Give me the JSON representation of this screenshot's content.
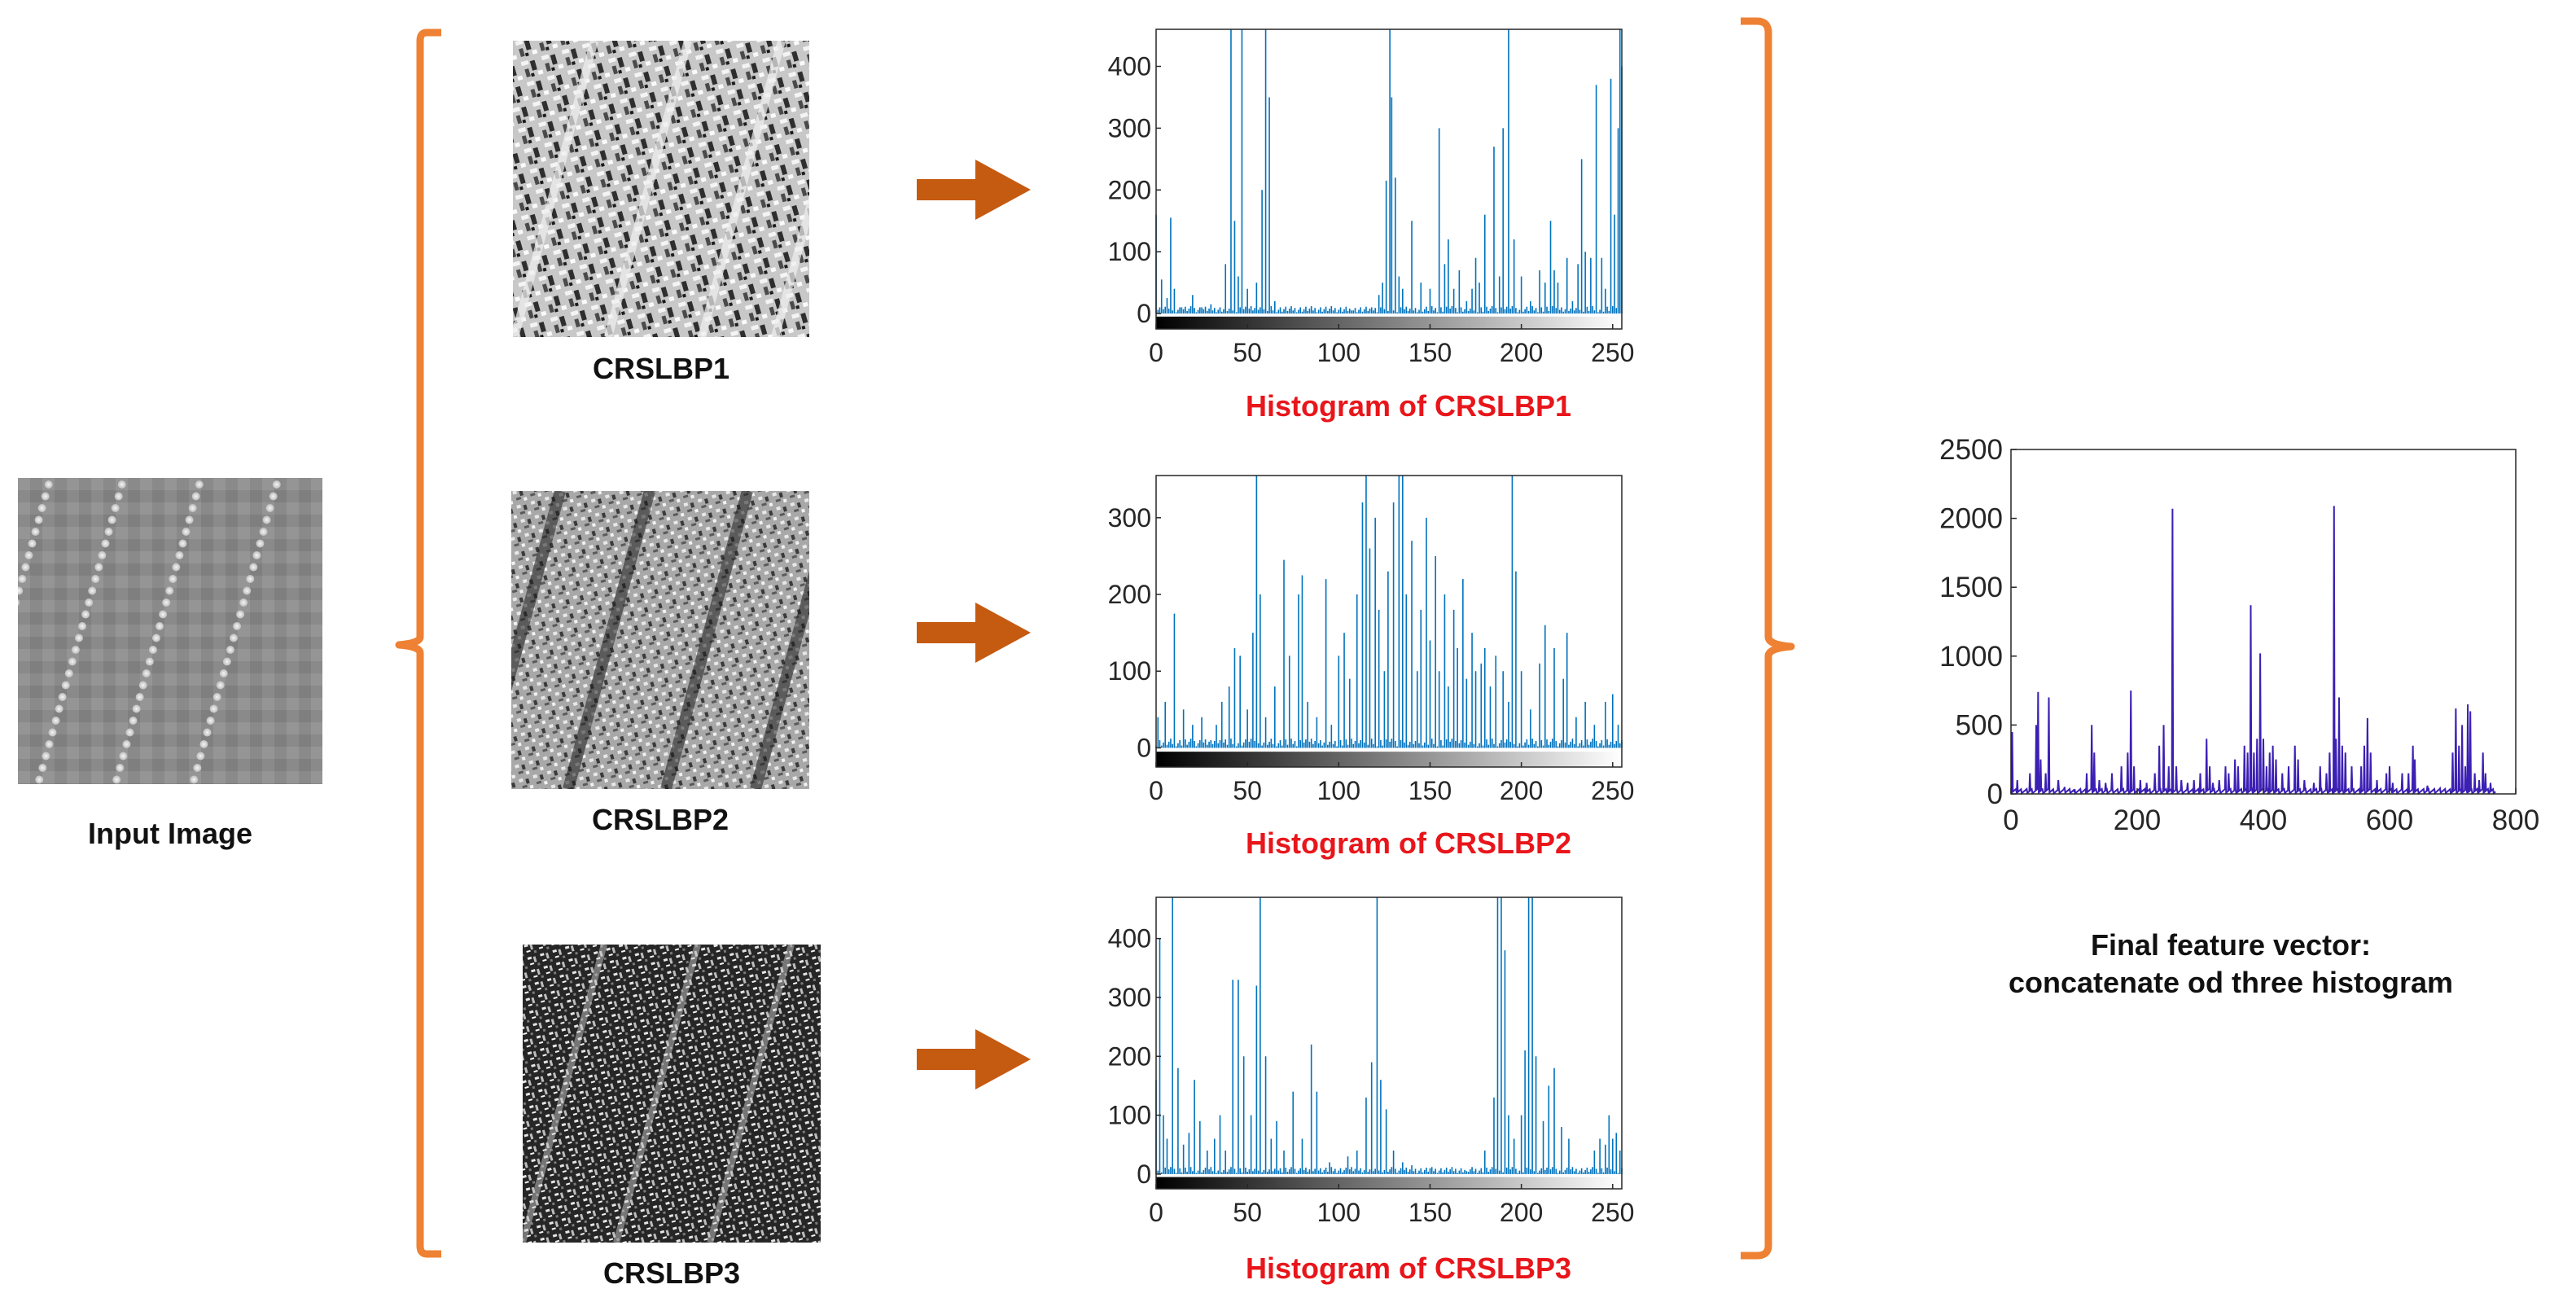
{
  "input": {
    "label": "Input Image"
  },
  "crslbp": [
    {
      "label": "CRSLBP1",
      "hist_title": "Histogram of CRSLBP1"
    },
    {
      "label": "CRSLBP2",
      "hist_title": "Histogram of CRSLBP2"
    },
    {
      "label": "CRSLBP3",
      "hist_title": "Histogram of CRSLBP3"
    }
  ],
  "final": {
    "caption_line1": "Final feature vector:",
    "caption_line2": "concatenate od three histogram"
  },
  "colors": {
    "bracket": "#ee8133",
    "arrow": "#c55a11",
    "hist": "#0072bd",
    "final_line": "#3c1fb3",
    "title_red": "#e8161b"
  },
  "chart_data": [
    {
      "type": "bar",
      "title": "Histogram of CRSLBP1",
      "xlim": [
        0,
        255
      ],
      "ylim": [
        -25,
        460
      ],
      "xticks": [
        0,
        50,
        100,
        150,
        200,
        250
      ],
      "yticks": [
        0,
        100,
        200,
        300,
        400
      ],
      "colorbar": "grayscale 0-255",
      "peaks": [
        [
          0,
          160
        ],
        [
          3,
          55
        ],
        [
          6,
          25
        ],
        [
          8,
          155
        ],
        [
          10,
          40
        ],
        [
          14,
          10
        ],
        [
          20,
          30
        ],
        [
          25,
          10
        ],
        [
          30,
          15
        ],
        [
          38,
          80
        ],
        [
          41,
          460
        ],
        [
          43,
          150
        ],
        [
          45,
          60
        ],
        [
          47,
          460
        ],
        [
          50,
          40
        ],
        [
          55,
          50
        ],
        [
          58,
          200
        ],
        [
          60,
          460
        ],
        [
          62,
          350
        ],
        [
          65,
          20
        ],
        [
          75,
          5
        ],
        [
          95,
          8
        ],
        [
          107,
          5
        ],
        [
          118,
          10
        ],
        [
          122,
          30
        ],
        [
          124,
          50
        ],
        [
          126,
          215
        ],
        [
          128,
          460
        ],
        [
          129,
          350
        ],
        [
          131,
          220
        ],
        [
          133,
          60
        ],
        [
          135,
          40
        ],
        [
          140,
          150
        ],
        [
          145,
          50
        ],
        [
          150,
          40
        ],
        [
          155,
          300
        ],
        [
          158,
          80
        ],
        [
          160,
          120
        ],
        [
          163,
          40
        ],
        [
          166,
          70
        ],
        [
          170,
          20
        ],
        [
          173,
          40
        ],
        [
          175,
          90
        ],
        [
          177,
          50
        ],
        [
          180,
          160
        ],
        [
          185,
          270
        ],
        [
          188,
          60
        ],
        [
          190,
          300
        ],
        [
          193,
          460
        ],
        [
          196,
          120
        ],
        [
          200,
          60
        ],
        [
          205,
          20
        ],
        [
          210,
          70
        ],
        [
          213,
          50
        ],
        [
          216,
          150
        ],
        [
          218,
          70
        ],
        [
          220,
          50
        ],
        [
          225,
          90
        ],
        [
          228,
          20
        ],
        [
          231,
          80
        ],
        [
          233,
          250
        ],
        [
          235,
          100
        ],
        [
          238,
          90
        ],
        [
          241,
          370
        ],
        [
          244,
          90
        ],
        [
          246,
          40
        ],
        [
          249,
          380
        ],
        [
          251,
          160
        ],
        [
          253,
          300
        ],
        [
          254,
          460
        ],
        [
          255,
          400
        ]
      ]
    },
    {
      "type": "bar",
      "title": "Histogram of CRSLBP2",
      "xlim": [
        0,
        255
      ],
      "ylim": [
        -25,
        355
      ],
      "xticks": [
        0,
        50,
        100,
        150,
        200,
        250
      ],
      "yticks": [
        0,
        100,
        200,
        300
      ],
      "colorbar": "grayscale 0-255",
      "peaks": [
        [
          1,
          40
        ],
        [
          5,
          60
        ],
        [
          10,
          175
        ],
        [
          15,
          50
        ],
        [
          20,
          30
        ],
        [
          25,
          40
        ],
        [
          30,
          10
        ],
        [
          33,
          30
        ],
        [
          36,
          60
        ],
        [
          40,
          80
        ],
        [
          43,
          130
        ],
        [
          46,
          120
        ],
        [
          50,
          50
        ],
        [
          53,
          150
        ],
        [
          55,
          355
        ],
        [
          57,
          200
        ],
        [
          60,
          40
        ],
        [
          65,
          80
        ],
        [
          70,
          245
        ],
        [
          73,
          120
        ],
        [
          78,
          200
        ],
        [
          80,
          225
        ],
        [
          83,
          60
        ],
        [
          88,
          40
        ],
        [
          93,
          220
        ],
        [
          96,
          30
        ],
        [
          100,
          120
        ],
        [
          103,
          150
        ],
        [
          106,
          90
        ],
        [
          110,
          200
        ],
        [
          113,
          320
        ],
        [
          115,
          355
        ],
        [
          117,
          260
        ],
        [
          120,
          300
        ],
        [
          122,
          180
        ],
        [
          125,
          100
        ],
        [
          127,
          230
        ],
        [
          130,
          320
        ],
        [
          133,
          355
        ],
        [
          135,
          355
        ],
        [
          137,
          200
        ],
        [
          140,
          270
        ],
        [
          143,
          100
        ],
        [
          145,
          180
        ],
        [
          148,
          300
        ],
        [
          150,
          140
        ],
        [
          153,
          250
        ],
        [
          155,
          100
        ],
        [
          158,
          200
        ],
        [
          160,
          80
        ],
        [
          163,
          180
        ],
        [
          165,
          130
        ],
        [
          168,
          220
        ],
        [
          170,
          90
        ],
        [
          173,
          150
        ],
        [
          175,
          100
        ],
        [
          178,
          110
        ],
        [
          180,
          130
        ],
        [
          183,
          80
        ],
        [
          186,
          120
        ],
        [
          190,
          100
        ],
        [
          193,
          60
        ],
        [
          195,
          355
        ],
        [
          197,
          230
        ],
        [
          200,
          100
        ],
        [
          205,
          50
        ],
        [
          210,
          110
        ],
        [
          213,
          160
        ],
        [
          218,
          130
        ],
        [
          223,
          90
        ],
        [
          225,
          150
        ],
        [
          230,
          40
        ],
        [
          235,
          60
        ],
        [
          240,
          30
        ],
        [
          246,
          60
        ],
        [
          250,
          70
        ],
        [
          253,
          30
        ]
      ]
    },
    {
      "type": "bar",
      "title": "Histogram of CRSLBP3",
      "xlim": [
        0,
        255
      ],
      "ylim": [
        -25,
        470
      ],
      "xticks": [
        0,
        50,
        100,
        150,
        200,
        250
      ],
      "yticks": [
        0,
        100,
        200,
        300,
        400
      ],
      "colorbar": "grayscale 0-255",
      "peaks": [
        [
          0,
          160
        ],
        [
          2,
          400
        ],
        [
          4,
          100
        ],
        [
          6,
          60
        ],
        [
          9,
          470
        ],
        [
          12,
          180
        ],
        [
          15,
          50
        ],
        [
          18,
          70
        ],
        [
          21,
          160
        ],
        [
          24,
          90
        ],
        [
          28,
          40
        ],
        [
          32,
          60
        ],
        [
          35,
          100
        ],
        [
          38,
          40
        ],
        [
          42,
          330
        ],
        [
          45,
          330
        ],
        [
          48,
          200
        ],
        [
          52,
          100
        ],
        [
          55,
          320
        ],
        [
          57,
          470
        ],
        [
          60,
          200
        ],
        [
          63,
          60
        ],
        [
          66,
          90
        ],
        [
          70,
          40
        ],
        [
          75,
          140
        ],
        [
          80,
          60
        ],
        [
          85,
          220
        ],
        [
          88,
          140
        ],
        [
          95,
          20
        ],
        [
          105,
          30
        ],
        [
          110,
          40
        ],
        [
          115,
          130
        ],
        [
          118,
          190
        ],
        [
          121,
          470
        ],
        [
          123,
          160
        ],
        [
          126,
          110
        ],
        [
          130,
          40
        ],
        [
          135,
          20
        ],
        [
          140,
          15
        ],
        [
          150,
          10
        ],
        [
          170,
          5
        ],
        [
          180,
          40
        ],
        [
          185,
          130
        ],
        [
          187,
          470
        ],
        [
          189,
          470
        ],
        [
          191,
          380
        ],
        [
          193,
          100
        ],
        [
          196,
          60
        ],
        [
          200,
          100
        ],
        [
          202,
          210
        ],
        [
          204,
          470
        ],
        [
          206,
          470
        ],
        [
          208,
          200
        ],
        [
          212,
          90
        ],
        [
          215,
          150
        ],
        [
          218,
          180
        ],
        [
          222,
          80
        ],
        [
          226,
          60
        ],
        [
          240,
          40
        ],
        [
          243,
          60
        ],
        [
          246,
          50
        ],
        [
          248,
          100
        ],
        [
          250,
          60
        ],
        [
          252,
          70
        ],
        [
          254,
          40
        ]
      ]
    },
    {
      "type": "line",
      "title": "",
      "xlim": [
        0,
        800
      ],
      "ylim": [
        0,
        2500
      ],
      "xticks": [
        0,
        200,
        400,
        600,
        800
      ],
      "yticks": [
        0,
        500,
        1000,
        1500,
        2000,
        2500
      ],
      "peaks": [
        [
          2,
          450
        ],
        [
          10,
          100
        ],
        [
          30,
          150
        ],
        [
          40,
          500
        ],
        [
          43,
          740
        ],
        [
          47,
          250
        ],
        [
          55,
          150
        ],
        [
          60,
          700
        ],
        [
          75,
          100
        ],
        [
          85,
          50
        ],
        [
          100,
          20
        ],
        [
          120,
          150
        ],
        [
          128,
          500
        ],
        [
          132,
          300
        ],
        [
          140,
          100
        ],
        [
          150,
          80
        ],
        [
          160,
          150
        ],
        [
          175,
          200
        ],
        [
          185,
          300
        ],
        [
          190,
          750
        ],
        [
          195,
          200
        ],
        [
          205,
          100
        ],
        [
          215,
          80
        ],
        [
          228,
          150
        ],
        [
          235,
          350
        ],
        [
          242,
          500
        ],
        [
          250,
          200
        ],
        [
          256,
          2070
        ],
        [
          262,
          200
        ],
        [
          270,
          100
        ],
        [
          280,
          80
        ],
        [
          290,
          100
        ],
        [
          300,
          150
        ],
        [
          310,
          400
        ],
        [
          315,
          200
        ],
        [
          320,
          80
        ],
        [
          330,
          100
        ],
        [
          340,
          200
        ],
        [
          345,
          150
        ],
        [
          355,
          250
        ],
        [
          360,
          200
        ],
        [
          370,
          350
        ],
        [
          375,
          300
        ],
        [
          380,
          1370
        ],
        [
          385,
          300
        ],
        [
          390,
          400
        ],
        [
          395,
          1020
        ],
        [
          400,
          400
        ],
        [
          405,
          200
        ],
        [
          410,
          300
        ],
        [
          415,
          350
        ],
        [
          420,
          250
        ],
        [
          430,
          150
        ],
        [
          440,
          200
        ],
        [
          450,
          350
        ],
        [
          455,
          250
        ],
        [
          465,
          100
        ],
        [
          480,
          80
        ],
        [
          490,
          200
        ],
        [
          500,
          150
        ],
        [
          505,
          300
        ],
        [
          512,
          2090
        ],
        [
          515,
          400
        ],
        [
          520,
          700
        ],
        [
          525,
          350
        ],
        [
          530,
          300
        ],
        [
          540,
          200
        ],
        [
          555,
          200
        ],
        [
          560,
          350
        ],
        [
          565,
          550
        ],
        [
          570,
          300
        ],
        [
          580,
          100
        ],
        [
          595,
          150
        ],
        [
          600,
          200
        ],
        [
          605,
          80
        ],
        [
          620,
          150
        ],
        [
          630,
          150
        ],
        [
          637,
          350
        ],
        [
          640,
          250
        ],
        [
          660,
          60
        ],
        [
          680,
          40
        ],
        [
          700,
          300
        ],
        [
          705,
          620
        ],
        [
          710,
          350
        ],
        [
          715,
          500
        ],
        [
          720,
          200
        ],
        [
          724,
          650
        ],
        [
          728,
          600
        ],
        [
          735,
          150
        ],
        [
          742,
          100
        ],
        [
          748,
          300
        ],
        [
          752,
          150
        ],
        [
          760,
          80
        ]
      ]
    }
  ]
}
